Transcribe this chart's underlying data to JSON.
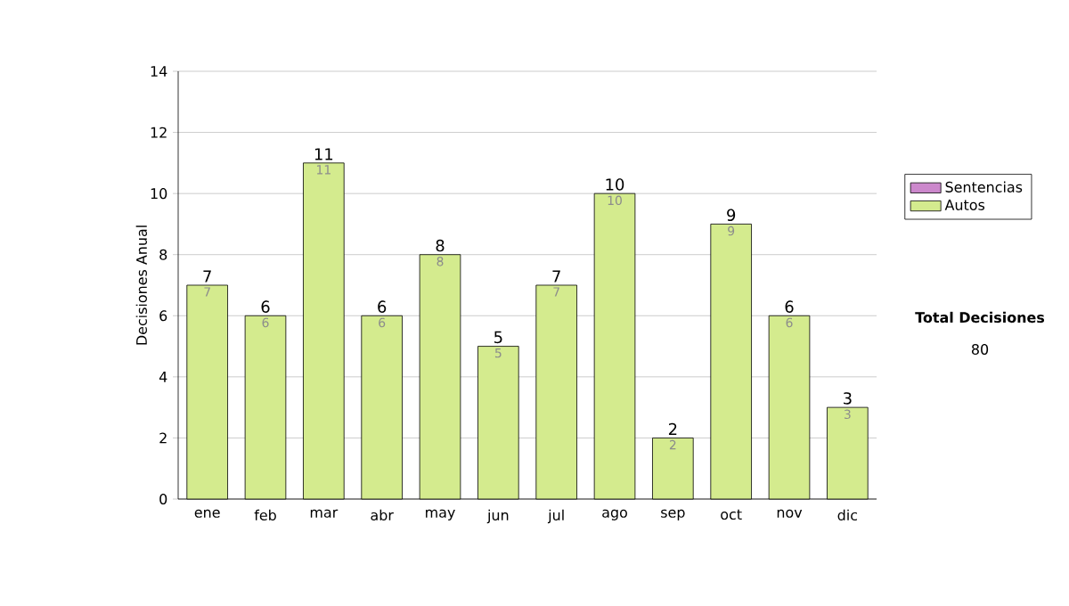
{
  "chart_data": {
    "type": "bar",
    "ylabel": "Decisiones Anual",
    "categories": [
      "ene",
      "feb",
      "mar",
      "abr",
      "may",
      "jun",
      "jul",
      "ago",
      "sep",
      "oct",
      "nov",
      "dic"
    ],
    "series": [
      {
        "name": "Sentencias",
        "color": "#cc88cc",
        "values": [
          null,
          null,
          null,
          null,
          null,
          null,
          null,
          null,
          null,
          null,
          null,
          null
        ]
      },
      {
        "name": "Autos",
        "color": "#d4eb8e",
        "values": [
          7,
          6,
          11,
          6,
          8,
          5,
          7,
          10,
          2,
          9,
          6,
          3
        ]
      }
    ],
    "stacked": true,
    "data_labels": true,
    "totals": [
      "7",
      "6",
      "11",
      "6",
      "8",
      "5",
      "7",
      "10",
      "2",
      "9",
      "6",
      "3"
    ],
    "ylim": [
      0,
      14
    ],
    "yticks": [
      0,
      2,
      4,
      6,
      8,
      10,
      12,
      14
    ],
    "grid": "y",
    "legend": "right",
    "annotations": [
      "Total Decisiones",
      "80"
    ]
  }
}
